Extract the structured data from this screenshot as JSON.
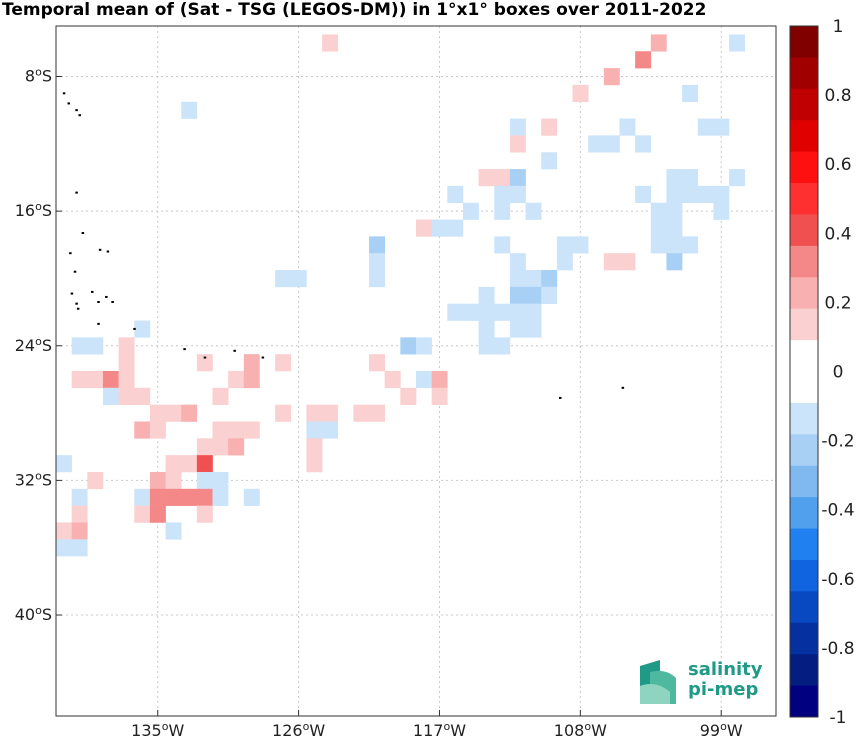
{
  "chart_data": {
    "type": "heatmap",
    "title": "Temporal mean of (Sat - TSG (LEGOS-DM)) in 1°x1° boxes over 2011-2022",
    "x_range": [
      -141.5,
      -95.5
    ],
    "y_range": [
      -46,
      -5
    ],
    "x_ticks": [
      {
        "value": -135,
        "label": "135°W"
      },
      {
        "value": -126,
        "label": "126°W"
      },
      {
        "value": -117,
        "label": "117°W"
      },
      {
        "value": -108,
        "label": "108°W"
      },
      {
        "value": -99,
        "label": "99°W"
      }
    ],
    "y_ticks": [
      {
        "value": -8,
        "label": "8°S"
      },
      {
        "value": -16,
        "label": "16°S"
      },
      {
        "value": -24,
        "label": "24°S"
      },
      {
        "value": -32,
        "label": "32°S"
      },
      {
        "value": -40,
        "label": "40°S"
      }
    ],
    "grid": true,
    "colorbar": {
      "min": -1,
      "max": 1,
      "step": 0.1,
      "labels": [
        "1",
        "0.8",
        "0.6",
        "0.4",
        "0.2",
        "0",
        "-0.2",
        "-0.4",
        "-0.6",
        "-0.8",
        "-1"
      ],
      "colors": [
        "#800000",
        "#a00000",
        "#c00000",
        "#e00000",
        "#ff1010",
        "#ff3030",
        "#f05050",
        "#f48888",
        "#f8b0b0",
        "#fbd0d0",
        "#ffffff",
        "#ffffff",
        "#cce4fa",
        "#a8d0f5",
        "#80b8f0",
        "#50a0ee",
        "#2080f0",
        "#1064e0",
        "#0848c0",
        "#0530a0",
        "#031e80",
        "#000080"
      ]
    },
    "cells": [
      [
        -124,
        -6,
        0.1
      ],
      [
        -103,
        -6,
        0.2
      ],
      [
        -98,
        -6,
        -0.1
      ],
      [
        -104,
        -7,
        0.3
      ],
      [
        -106,
        -8,
        0.2
      ],
      [
        -108,
        -9,
        0.1
      ],
      [
        -101,
        -9,
        -0.1
      ],
      [
        -133,
        -10,
        -0.1
      ],
      [
        -112,
        -11,
        -0.1
      ],
      [
        -110,
        -11,
        0.1
      ],
      [
        -105,
        -11,
        -0.1
      ],
      [
        -100,
        -11,
        -0.1
      ],
      [
        -99,
        -11,
        -0.1
      ],
      [
        -112,
        -12,
        0.1
      ],
      [
        -107,
        -12,
        -0.1
      ],
      [
        -106,
        -12,
        -0.1
      ],
      [
        -104,
        -12,
        -0.1
      ],
      [
        -110,
        -13,
        -0.1
      ],
      [
        -114,
        -14,
        0.1
      ],
      [
        -113,
        -14,
        0.1
      ],
      [
        -112,
        -14,
        -0.2
      ],
      [
        -102,
        -14,
        -0.1
      ],
      [
        -101,
        -14,
        -0.1
      ],
      [
        -98,
        -14,
        -0.1
      ],
      [
        -116,
        -15,
        -0.1
      ],
      [
        -113,
        -15,
        -0.1
      ],
      [
        -112,
        -15,
        -0.1
      ],
      [
        -104,
        -15,
        -0.1
      ],
      [
        -102,
        -15,
        -0.1
      ],
      [
        -101,
        -15,
        -0.1
      ],
      [
        -100,
        -15,
        -0.1
      ],
      [
        -99,
        -15,
        -0.1
      ],
      [
        -115,
        -16,
        -0.1
      ],
      [
        -113,
        -16,
        -0.1
      ],
      [
        -111,
        -16,
        -0.1
      ],
      [
        -103,
        -16,
        -0.1
      ],
      [
        -102,
        -16,
        -0.1
      ],
      [
        -99,
        -16,
        -0.1
      ],
      [
        -118,
        -17,
        0.1
      ],
      [
        -117,
        -17,
        -0.1
      ],
      [
        -116,
        -17,
        -0.1
      ],
      [
        -103,
        -17,
        -0.1
      ],
      [
        -102,
        -17,
        -0.1
      ],
      [
        -121,
        -18,
        -0.2
      ],
      [
        -113,
        -18,
        -0.1
      ],
      [
        -109,
        -18,
        -0.1
      ],
      [
        -108,
        -18,
        -0.1
      ],
      [
        -103,
        -18,
        -0.1
      ],
      [
        -102,
        -18,
        -0.1
      ],
      [
        -101,
        -18,
        -0.1
      ],
      [
        -121,
        -19,
        -0.1
      ],
      [
        -112,
        -19,
        -0.1
      ],
      [
        -109,
        -19,
        -0.1
      ],
      [
        -106,
        -19,
        0.1
      ],
      [
        -105,
        -19,
        0.1
      ],
      [
        -102,
        -19,
        -0.2
      ],
      [
        -127,
        -20,
        -0.1
      ],
      [
        -126,
        -20,
        -0.1
      ],
      [
        -121,
        -20,
        -0.1
      ],
      [
        -112,
        -20,
        -0.1
      ],
      [
        -111,
        -20,
        -0.1
      ],
      [
        -110,
        -20,
        -0.2
      ],
      [
        -114,
        -21,
        -0.1
      ],
      [
        -112,
        -21,
        -0.2
      ],
      [
        -111,
        -21,
        -0.2
      ],
      [
        -110,
        -21,
        -0.1
      ],
      [
        -116,
        -22,
        -0.1
      ],
      [
        -115,
        -22,
        -0.1
      ],
      [
        -114,
        -22,
        -0.1
      ],
      [
        -113,
        -22,
        -0.1
      ],
      [
        -112,
        -22,
        -0.1
      ],
      [
        -111,
        -22,
        -0.1
      ],
      [
        -136,
        -23,
        -0.1
      ],
      [
        -114,
        -23,
        -0.1
      ],
      [
        -112,
        -23,
        -0.1
      ],
      [
        -111,
        -23,
        -0.1
      ],
      [
        -140,
        -24,
        -0.1
      ],
      [
        -139,
        -24,
        -0.1
      ],
      [
        -137,
        -24,
        0.1
      ],
      [
        -119,
        -24,
        -0.2
      ],
      [
        -118,
        -24,
        -0.1
      ],
      [
        -114,
        -24,
        -0.1
      ],
      [
        -113,
        -24,
        -0.1
      ],
      [
        -137,
        -25,
        0.1
      ],
      [
        -132,
        -25,
        0.1
      ],
      [
        -129,
        -25,
        0.2
      ],
      [
        -127,
        -25,
        0.1
      ],
      [
        -121,
        -25,
        0.1
      ],
      [
        -140,
        -26,
        0.1
      ],
      [
        -139,
        -26,
        0.1
      ],
      [
        -138,
        -26,
        0.3
      ],
      [
        -137,
        -26,
        0.1
      ],
      [
        -130,
        -26,
        0.1
      ],
      [
        -129,
        -26,
        0.2
      ],
      [
        -120,
        -26,
        0.1
      ],
      [
        -118,
        -26,
        -0.1
      ],
      [
        -117,
        -26,
        0.2
      ],
      [
        -138,
        -27,
        -0.1
      ],
      [
        -137,
        -27,
        0.1
      ],
      [
        -136,
        -27,
        0.1
      ],
      [
        -131,
        -27,
        0.1
      ],
      [
        -119,
        -27,
        0.1
      ],
      [
        -117,
        -27,
        0.1
      ],
      [
        -135,
        -28,
        0.1
      ],
      [
        -134,
        -28,
        0.1
      ],
      [
        -133,
        -28,
        0.2
      ],
      [
        -127,
        -28,
        0.1
      ],
      [
        -125,
        -28,
        0.1
      ],
      [
        -124,
        -28,
        0.1
      ],
      [
        -122,
        -28,
        0.1
      ],
      [
        -121,
        -28,
        0.1
      ],
      [
        -136,
        -29,
        0.2
      ],
      [
        -135,
        -29,
        0.1
      ],
      [
        -131,
        -29,
        0.1
      ],
      [
        -130,
        -29,
        0.1
      ],
      [
        -129,
        -29,
        0.1
      ],
      [
        -125,
        -29,
        -0.1
      ],
      [
        -124,
        -29,
        -0.1
      ],
      [
        -132,
        -30,
        0.1
      ],
      [
        -131,
        -30,
        0.1
      ],
      [
        -130,
        -30,
        0.2
      ],
      [
        -125,
        -30,
        0.1
      ],
      [
        -141,
        -31,
        -0.1
      ],
      [
        -134,
        -31,
        0.1
      ],
      [
        -133,
        -31,
        0.1
      ],
      [
        -132,
        -31,
        0.4
      ],
      [
        -125,
        -31,
        0.1
      ],
      [
        -139,
        -32,
        0.1
      ],
      [
        -135,
        -32,
        0.2
      ],
      [
        -134,
        -32,
        0.1
      ],
      [
        -132,
        -32,
        -0.1
      ],
      [
        -131,
        -32,
        -0.1
      ],
      [
        -140,
        -33,
        -0.1
      ],
      [
        -136,
        -33,
        -0.1
      ],
      [
        -135,
        -33,
        0.3
      ],
      [
        -134,
        -33,
        0.3
      ],
      [
        -133,
        -33,
        0.3
      ],
      [
        -132,
        -33,
        0.3
      ],
      [
        -131,
        -33,
        -0.1
      ],
      [
        -129,
        -33,
        -0.1
      ],
      [
        -140,
        -34,
        0.1
      ],
      [
        -136,
        -34,
        0.1
      ],
      [
        -135,
        -34,
        0.3
      ],
      [
        -132,
        -34,
        0.1
      ],
      [
        -141,
        -35,
        0.1
      ],
      [
        -140,
        -35,
        0.2
      ],
      [
        -134,
        -35,
        -0.1
      ],
      [
        -141,
        -36,
        -0.1
      ],
      [
        -140,
        -36,
        -0.1
      ]
    ],
    "islands": [
      [
        -141.0,
        -9.0
      ],
      [
        -140.7,
        -9.6
      ],
      [
        -140.2,
        -10.0
      ],
      [
        -140.0,
        -10.3
      ],
      [
        -140.2,
        -14.9
      ],
      [
        -139.8,
        -17.3
      ],
      [
        -138.7,
        -18.3
      ],
      [
        -138.2,
        -18.4
      ],
      [
        -140.6,
        -18.5
      ],
      [
        -140.3,
        -19.6
      ],
      [
        -140.5,
        -20.9
      ],
      [
        -140.2,
        -21.5
      ],
      [
        -140.1,
        -21.8
      ],
      [
        -139.2,
        -20.8
      ],
      [
        -138.8,
        -21.4
      ],
      [
        -138.3,
        -21.1
      ],
      [
        -137.9,
        -21.4
      ],
      [
        -138.8,
        -22.7
      ],
      [
        -136.5,
        -23.0
      ],
      [
        -133.3,
        -24.2
      ],
      [
        -132.0,
        -24.7
      ],
      [
        -130.1,
        -24.3
      ],
      [
        -128.3,
        -24.7
      ],
      [
        -109.3,
        -27.1
      ],
      [
        -105.3,
        -26.5
      ]
    ]
  },
  "logo": {
    "line1": "salinity",
    "line2": "pi-mep"
  }
}
